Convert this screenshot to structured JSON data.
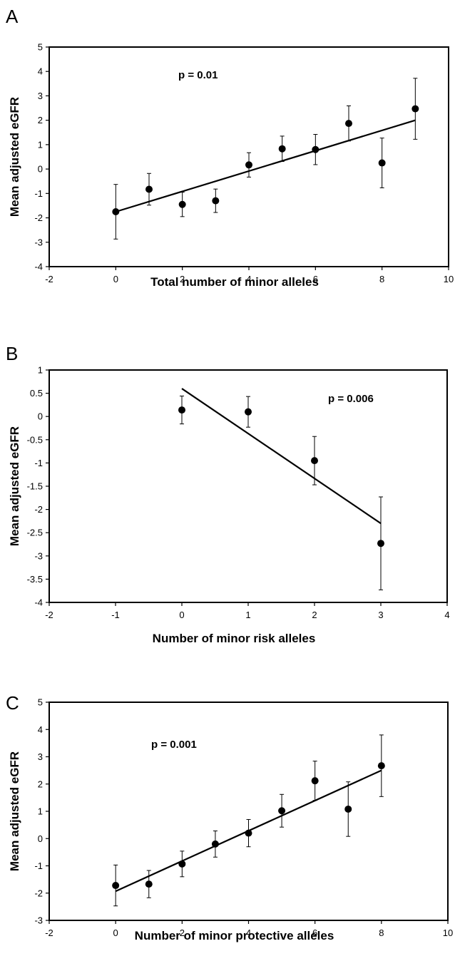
{
  "chart_data": [
    {
      "type": "scatter",
      "panel": "A",
      "xlabel": "Total number of minor alleles",
      "ylabel": "Mean adjusted eGFR",
      "annotation": "p = 0.01",
      "xlim": [
        -2,
        10
      ],
      "ylim": [
        -4,
        5
      ],
      "xticks": [
        -2,
        0,
        2,
        4,
        6,
        8,
        10
      ],
      "yticks": [
        -4,
        -3,
        -2,
        -1,
        0,
        1,
        2,
        3,
        4,
        5
      ],
      "x": [
        0,
        1,
        2,
        3,
        4,
        5,
        6,
        7,
        8,
        9
      ],
      "y": [
        -1.75,
        -0.83,
        -1.45,
        -1.3,
        0.17,
        0.83,
        0.8,
        1.87,
        0.25,
        2.47
      ],
      "err": [
        1.12,
        0.65,
        0.5,
        0.48,
        0.5,
        0.52,
        0.62,
        0.72,
        1.02,
        1.25
      ],
      "trendline": [
        [
          0,
          -1.75
        ],
        [
          9,
          2.0
        ]
      ],
      "grid": false
    },
    {
      "type": "scatter",
      "panel": "B",
      "xlabel": "Number of minor risk alleles",
      "ylabel": "Mean adjusted eGFR",
      "annotation": "p = 0.006",
      "xlim": [
        -2,
        4
      ],
      "ylim": [
        -4,
        1
      ],
      "xticks": [
        -2,
        -1,
        0,
        1,
        2,
        3,
        4
      ],
      "yticks": [
        -4,
        -3.5,
        -3,
        -2.5,
        -2,
        -1.5,
        -1,
        -0.5,
        0,
        0.5,
        1
      ],
      "x": [
        0,
        1,
        2,
        3
      ],
      "y": [
        0.14,
        0.1,
        -0.95,
        -2.73
      ],
      "err": [
        0.3,
        0.33,
        0.52,
        1.0
      ],
      "trendline": [
        [
          0,
          0.6
        ],
        [
          3,
          -2.3
        ]
      ],
      "grid": false
    },
    {
      "type": "scatter",
      "panel": "C",
      "xlabel": "Number of minor protective alleles",
      "ylabel": "Mean adjusted eGFR",
      "annotation": "p = 0.001",
      "xlim": [
        -2,
        10
      ],
      "ylim": [
        -3,
        5
      ],
      "xticks": [
        -2,
        0,
        2,
        4,
        6,
        8,
        10
      ],
      "yticks": [
        -3,
        -2,
        -1,
        0,
        1,
        2,
        3,
        4,
        5
      ],
      "x": [
        0,
        1,
        2,
        3,
        4,
        5,
        6,
        7,
        8
      ],
      "y": [
        -1.72,
        -1.67,
        -0.93,
        -0.2,
        0.2,
        1.02,
        2.12,
        1.08,
        2.67
      ],
      "err": [
        0.75,
        0.5,
        0.47,
        0.48,
        0.5,
        0.6,
        0.72,
        1.0,
        1.13
      ],
      "trendline": [
        [
          0,
          -1.93
        ],
        [
          8,
          2.5
        ]
      ],
      "grid": false
    }
  ]
}
